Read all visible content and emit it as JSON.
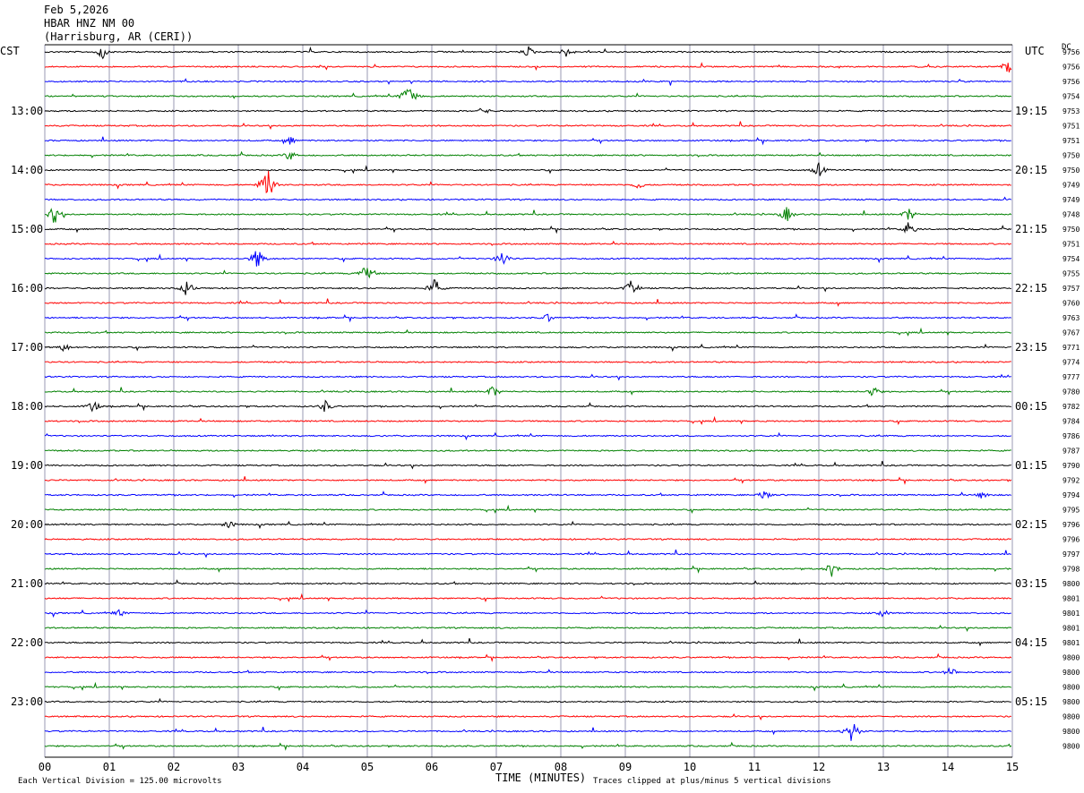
{
  "header": {
    "date": "Feb 5,2026",
    "station": "HBAR HNZ NM 00",
    "location": "(Harrisburg, AR (CERI))"
  },
  "chart_data": {
    "type": "line",
    "title": "",
    "xlabel": "TIME (MINUTES)",
    "left_axis_label": "CST",
    "right_axis_label": "UTC",
    "dc_label": "DC",
    "x_ticks": [
      "00",
      "01",
      "02",
      "03",
      "04",
      "05",
      "06",
      "07",
      "08",
      "09",
      "10",
      "11",
      "12",
      "13",
      "14",
      "15"
    ],
    "xlim": [
      0,
      15
    ],
    "trace_interval_minutes": 15,
    "left_hour_labels": [
      "13:00",
      "14:00",
      "15:00",
      "16:00",
      "17:00",
      "18:00",
      "19:00",
      "20:00",
      "21:00",
      "22:00",
      "23:00"
    ],
    "right_hour_labels": [
      "19:15",
      "20:15",
      "21:15",
      "22:15",
      "23:15",
      "00:15",
      "01:15",
      "02:15",
      "03:15",
      "04:15",
      "05:15"
    ],
    "first_labeled_trace_index": 4,
    "trace_colors": [
      "#000000",
      "#ff0000",
      "#0000ff",
      "#008000"
    ],
    "dc_offsets": [
      9756,
      9756,
      9756,
      9754,
      9753,
      9751,
      9751,
      9750,
      9750,
      9749,
      9749,
      9748,
      9750,
      9751,
      9754,
      9755,
      9757,
      9760,
      9763,
      9767,
      9771,
      9774,
      9777,
      9780,
      9782,
      9784,
      9786,
      9787,
      9790,
      9792,
      9794,
      9795,
      9796,
      9796,
      9797,
      9798,
      9800,
      9801,
      9801,
      9801,
      9801,
      9800,
      9800,
      9800,
      9800,
      9800,
      9800,
      9800
    ],
    "footer_scale": "Each Vertical Division =  125.00 microvolts",
    "footer_clip": "Traces clipped at plus/minus 5 vertical divisions",
    "events": [
      {
        "trace": 0,
        "min": 0.9,
        "amp": 10
      },
      {
        "trace": 0,
        "min": 7.5,
        "amp": 7
      },
      {
        "trace": 0,
        "min": 8.1,
        "amp": 8
      },
      {
        "trace": 1,
        "min": 14.95,
        "amp": 12
      },
      {
        "trace": 3,
        "min": 5.65,
        "amp": 18
      },
      {
        "trace": 4,
        "min": 6.8,
        "amp": 6
      },
      {
        "trace": 6,
        "min": 3.8,
        "amp": 6
      },
      {
        "trace": 7,
        "min": 3.8,
        "amp": 7
      },
      {
        "trace": 8,
        "min": 12.0,
        "amp": 9
      },
      {
        "trace": 9,
        "min": 3.45,
        "amp": 22
      },
      {
        "trace": 9,
        "min": 9.2,
        "amp": 6
      },
      {
        "trace": 11,
        "min": 0.15,
        "amp": 12
      },
      {
        "trace": 11,
        "min": 11.5,
        "amp": 10
      },
      {
        "trace": 11,
        "min": 13.4,
        "amp": 9
      },
      {
        "trace": 12,
        "min": 13.4,
        "amp": 10
      },
      {
        "trace": 14,
        "min": 3.3,
        "amp": 14
      },
      {
        "trace": 14,
        "min": 7.1,
        "amp": 11
      },
      {
        "trace": 15,
        "min": 5.0,
        "amp": 15
      },
      {
        "trace": 16,
        "min": 2.2,
        "amp": 10
      },
      {
        "trace": 16,
        "min": 6.05,
        "amp": 12
      },
      {
        "trace": 16,
        "min": 9.1,
        "amp": 11
      },
      {
        "trace": 18,
        "min": 7.8,
        "amp": 6
      },
      {
        "trace": 20,
        "min": 0.3,
        "amp": 6
      },
      {
        "trace": 23,
        "min": 6.95,
        "amp": 8
      },
      {
        "trace": 23,
        "min": 12.85,
        "amp": 8
      },
      {
        "trace": 24,
        "min": 0.75,
        "amp": 8
      },
      {
        "trace": 24,
        "min": 4.35,
        "amp": 8
      },
      {
        "trace": 30,
        "min": 11.15,
        "amp": 7
      },
      {
        "trace": 30,
        "min": 14.55,
        "amp": 6
      },
      {
        "trace": 32,
        "min": 2.85,
        "amp": 6
      },
      {
        "trace": 35,
        "min": 12.2,
        "amp": 9
      },
      {
        "trace": 38,
        "min": 1.15,
        "amp": 6
      },
      {
        "trace": 38,
        "min": 13.0,
        "amp": 5
      },
      {
        "trace": 42,
        "min": 14.05,
        "amp": 7
      },
      {
        "trace": 46,
        "min": 12.5,
        "amp": 16
      }
    ]
  }
}
